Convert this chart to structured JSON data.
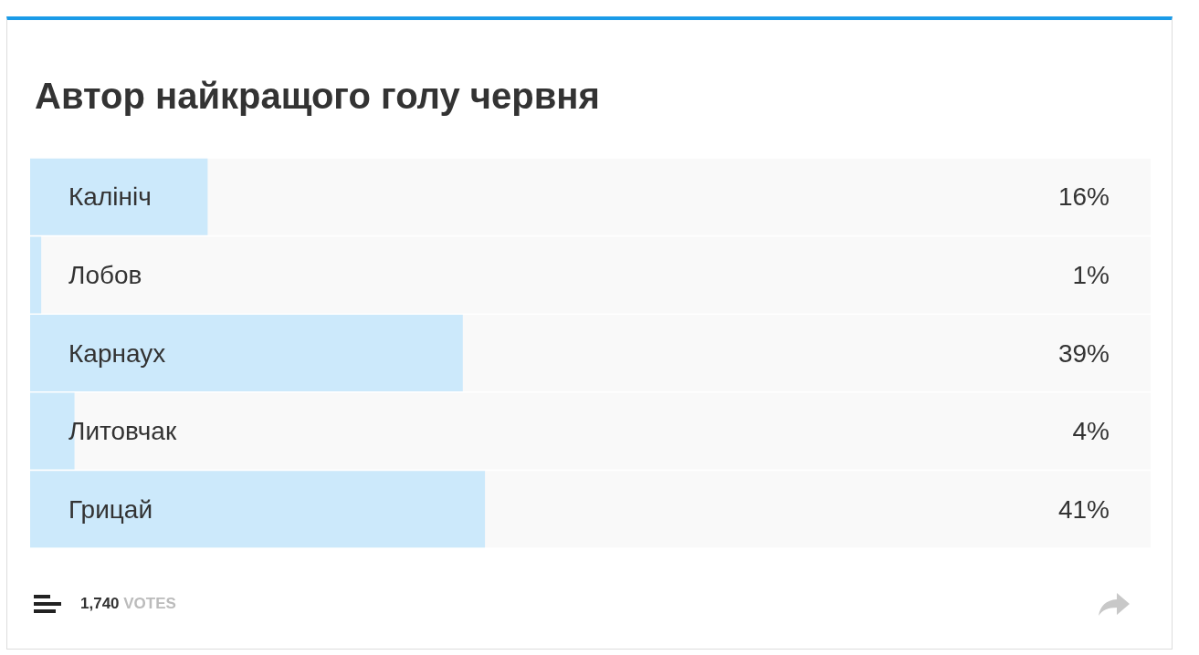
{
  "chart_data": {
    "type": "bar",
    "orientation": "horizontal",
    "title": "Автор найкращого голу червня",
    "categories": [
      "Калініч",
      "Лобов",
      "Карнаух",
      "Литовчак",
      "Грицай"
    ],
    "values": [
      16,
      1,
      39,
      4,
      41
    ],
    "value_labels": [
      "16%",
      "1%",
      "39%",
      "4%",
      "41%"
    ],
    "color": "#cce9fb",
    "annotations": [
      "1,740 VOTES"
    ]
  }
}
